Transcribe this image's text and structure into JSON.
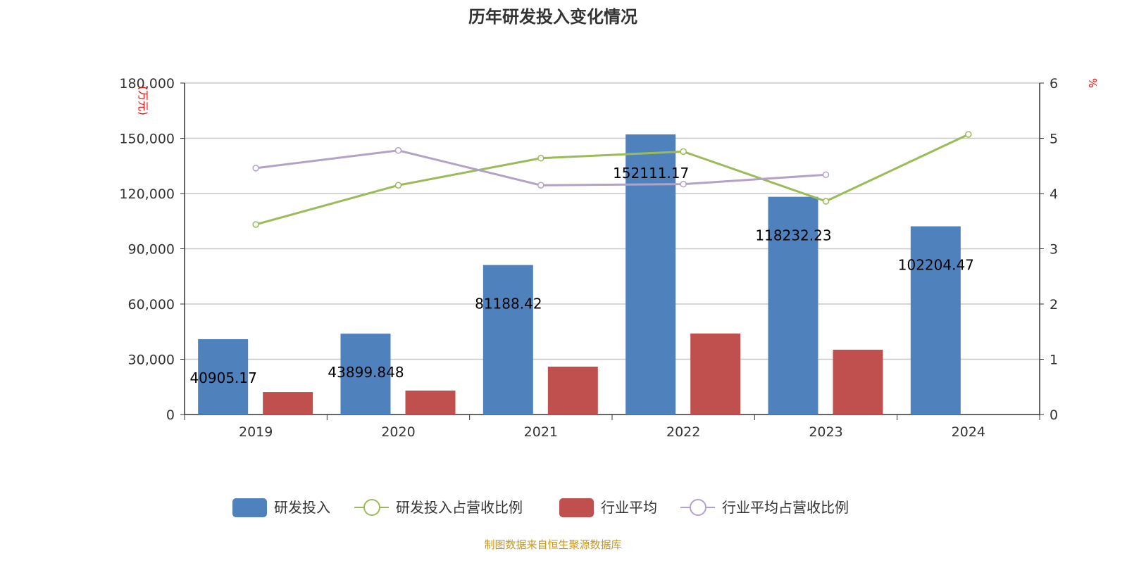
{
  "chart_data": {
    "type": "bar",
    "title": "历年研发投入变化情况",
    "categories": [
      "2019",
      "2020",
      "2021",
      "2022",
      "2023",
      "2024"
    ],
    "y_left": {
      "label": "(万元)",
      "range": [
        0,
        180000
      ],
      "ticks": [
        "0",
        "30,000",
        "60,000",
        "90,000",
        "120,000",
        "150,000",
        "180,000"
      ]
    },
    "y_right": {
      "label": "%",
      "range": [
        0,
        6
      ],
      "ticks": [
        "0",
        "1",
        "2",
        "3",
        "4",
        "5",
        "6"
      ]
    },
    "grid": true,
    "legend_position": "bottom",
    "series": [
      {
        "name": "研发投入",
        "type": "bar",
        "axis": "left",
        "color": "#4f81bd",
        "values": [
          40905.17,
          43899.848,
          81188.42,
          152111.17,
          118232.23,
          102204.47
        ],
        "labels": [
          "40905.17",
          "43899.848",
          "81188.42",
          "152111.17",
          "118232.23",
          "102204.47"
        ]
      },
      {
        "name": "研发投入占营收比例",
        "type": "line",
        "axis": "right",
        "color": "#9bbb59",
        "values": [
          3.44,
          4.15,
          4.64,
          4.76,
          3.86,
          5.07
        ]
      },
      {
        "name": "行业平均",
        "type": "bar",
        "axis": "left",
        "color": "#c0504d",
        "values": [
          12200,
          13000,
          26000,
          44000,
          35200,
          null
        ]
      },
      {
        "name": "行业平均占营收比例",
        "type": "line",
        "axis": "right",
        "color": "#b3a2c7",
        "values": [
          4.46,
          4.78,
          4.15,
          4.17,
          4.34,
          null
        ]
      }
    ]
  },
  "source": "制图数据来自恒生聚源数据库"
}
